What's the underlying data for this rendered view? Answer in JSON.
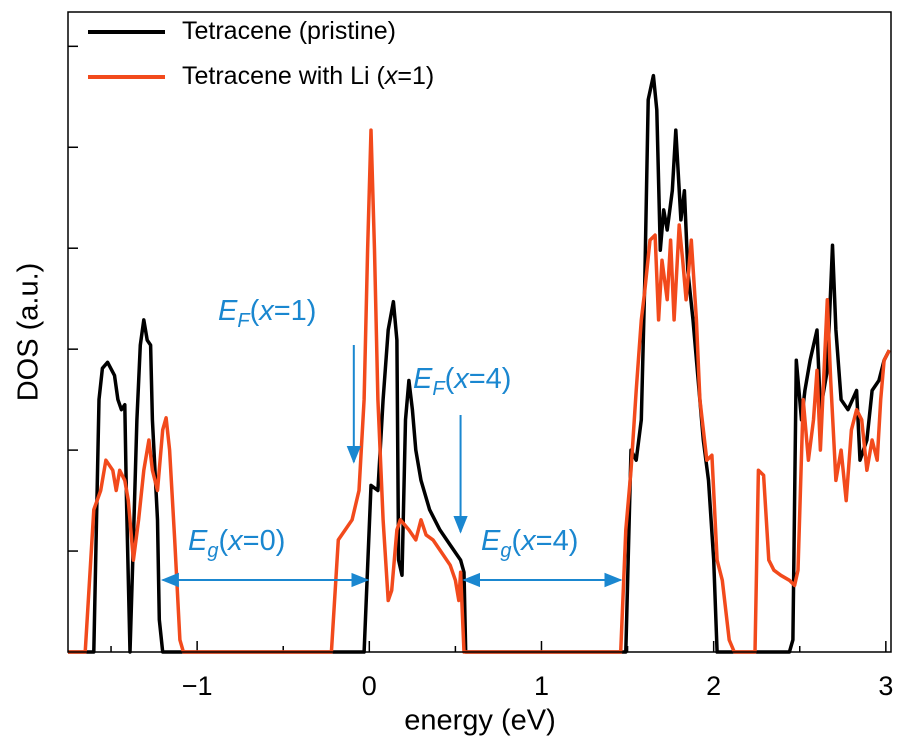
{
  "chart_data": {
    "type": "line",
    "xlabel": "energy (eV)",
    "ylabel": "DOS (a.u.)",
    "xlim": [
      -1.75,
      3.03
    ],
    "ylim": [
      0,
      6.34
    ],
    "xticks": [
      {
        "value": -1,
        "label": "−1"
      },
      0,
      1,
      2,
      3
    ],
    "xminor_ticks": [
      -1.5,
      -0.5,
      0.5,
      1.5,
      2.5
    ],
    "yticks": [
      0,
      1,
      2,
      3,
      4,
      5,
      6
    ],
    "legend": "upper left",
    "series": [
      {
        "name": "Tetracene (pristine)",
        "color": "#000000",
        "x": [
          -1.75,
          -1.6,
          -1.57,
          -1.55,
          -1.52,
          -1.48,
          -1.46,
          -1.44,
          -1.42,
          -1.41,
          -1.39,
          -1.37,
          -1.35,
          -1.33,
          -1.31,
          -1.29,
          -1.27,
          -1.26,
          -1.23,
          -1.22,
          -1.2,
          -0.03,
          0.01,
          0.05,
          0.08,
          0.11,
          0.14,
          0.16,
          0.17,
          0.19,
          0.21,
          0.23,
          0.25,
          0.27,
          0.3,
          0.35,
          0.41,
          0.47,
          0.53,
          0.55,
          0.56,
          1.49,
          1.52,
          1.55,
          1.58,
          1.6,
          1.62,
          1.65,
          1.67,
          1.69,
          1.71,
          1.73,
          1.76,
          1.78,
          1.81,
          1.83,
          1.85,
          1.88,
          1.91,
          1.94,
          1.97,
          2.0,
          2.02,
          2.44,
          2.46,
          2.48,
          2.51,
          2.53,
          2.56,
          2.6,
          2.62,
          2.66,
          2.69,
          2.71,
          2.74,
          2.78,
          2.83,
          2.85,
          2.89,
          2.92,
          2.96,
          2.99,
          3.02
        ],
        "values": [
          0,
          0,
          2.5,
          2.81,
          2.87,
          2.74,
          2.5,
          2.4,
          2.45,
          1.5,
          0,
          1.11,
          2.3,
          3.04,
          3.29,
          3.09,
          3.04,
          2.3,
          1.31,
          0.32,
          0,
          0,
          1.65,
          1.6,
          2.5,
          3.19,
          3.47,
          3.09,
          0.91,
          0.76,
          2.3,
          2.69,
          2.4,
          2.0,
          1.7,
          1.41,
          1.21,
          1.06,
          0.91,
          0.79,
          0,
          0,
          2.0,
          1.9,
          2.3,
          3.68,
          5.47,
          5.71,
          5.37,
          3.98,
          4.38,
          4.18,
          4.57,
          5.17,
          4.28,
          4.57,
          3.78,
          3.29,
          2.69,
          2.1,
          1.7,
          0.91,
          0,
          0,
          0.12,
          2.89,
          2.3,
          2.59,
          2.89,
          3.19,
          2.4,
          2.79,
          4.03,
          3.19,
          2.5,
          2.4,
          2.59,
          1.9,
          2.1,
          2.59,
          2.69,
          2.89,
          2.99
        ]
      },
      {
        "name": "Tetracene with Li (x=1)",
        "color": "#f24a1c",
        "x": [
          -1.75,
          -1.65,
          -1.6,
          -1.56,
          -1.53,
          -1.49,
          -1.47,
          -1.45,
          -1.42,
          -1.4,
          -1.37,
          -1.34,
          -1.31,
          -1.28,
          -1.26,
          -1.23,
          -1.2,
          -1.18,
          -1.16,
          -1.13,
          -1.1,
          -1.08,
          -0.22,
          -0.18,
          -0.14,
          -0.1,
          -0.06,
          -0.03,
          -0.01,
          0.01,
          0.03,
          0.05,
          0.08,
          0.11,
          0.13,
          0.16,
          0.18,
          0.23,
          0.27,
          0.3,
          0.33,
          0.37,
          0.41,
          0.47,
          0.5,
          0.52,
          0.53,
          0.55,
          1.46,
          1.49,
          1.52,
          1.55,
          1.58,
          1.6,
          1.63,
          1.66,
          1.68,
          1.7,
          1.73,
          1.75,
          1.77,
          1.8,
          1.82,
          1.84,
          1.87,
          1.9,
          1.92,
          1.96,
          1.99,
          2.02,
          2.05,
          2.09,
          2.12,
          2.24,
          2.26,
          2.29,
          2.32,
          2.35,
          2.39,
          2.44,
          2.47,
          2.49,
          2.52,
          2.55,
          2.58,
          2.6,
          2.62,
          2.66,
          2.68,
          2.71,
          2.74,
          2.77,
          2.8,
          2.83,
          2.86,
          2.89,
          2.92,
          2.95,
          2.97,
          2.99,
          3.02
        ],
        "values": [
          0,
          0,
          1.41,
          1.6,
          1.9,
          1.8,
          1.6,
          1.8,
          1.7,
          1.5,
          0.91,
          1.31,
          1.8,
          2.1,
          1.8,
          1.6,
          2.2,
          2.32,
          2.0,
          1.11,
          0.12,
          0,
          0,
          1.11,
          1.21,
          1.31,
          1.6,
          2.5,
          3.98,
          5.17,
          3.98,
          2.5,
          1.31,
          0.51,
          0.61,
          1.21,
          1.31,
          1.21,
          1.11,
          1.31,
          1.16,
          1.11,
          1.01,
          0.86,
          0.71,
          0.51,
          0.79,
          0,
          0,
          1.21,
          1.8,
          2.59,
          3.29,
          3.58,
          4.08,
          4.13,
          3.29,
          3.88,
          3.49,
          4.08,
          3.29,
          4.23,
          3.88,
          3.49,
          4.08,
          3.29,
          2.5,
          1.9,
          1.95,
          0.91,
          0.71,
          0.12,
          0,
          0,
          1.8,
          1.75,
          0.91,
          0.81,
          0.76,
          0.71,
          0.66,
          0.81,
          2.5,
          1.9,
          2.3,
          2.79,
          2.0,
          3.49,
          2.69,
          1.7,
          2.0,
          1.5,
          2.2,
          2.4,
          2.3,
          1.8,
          2.1,
          1.9,
          2.5,
          2.89,
          2.99
        ]
      }
    ],
    "annotations": [
      {
        "label": "E",
        "subscript": "F",
        "suffix": "(x=1)",
        "arrow": "down",
        "x": -0.09
      },
      {
        "label": "E",
        "subscript": "F",
        "suffix": "(x=4)",
        "arrow": "down",
        "x": 0.53
      },
      {
        "label": "E",
        "subscript": "g",
        "suffix": "(x=0)",
        "arrow": "both",
        "x1": -1.2,
        "x2": -0.01
      },
      {
        "label": "E",
        "subscript": "g",
        "suffix": "(x=4)",
        "arrow": "both",
        "x1": 0.55,
        "x2": 1.46
      }
    ]
  }
}
